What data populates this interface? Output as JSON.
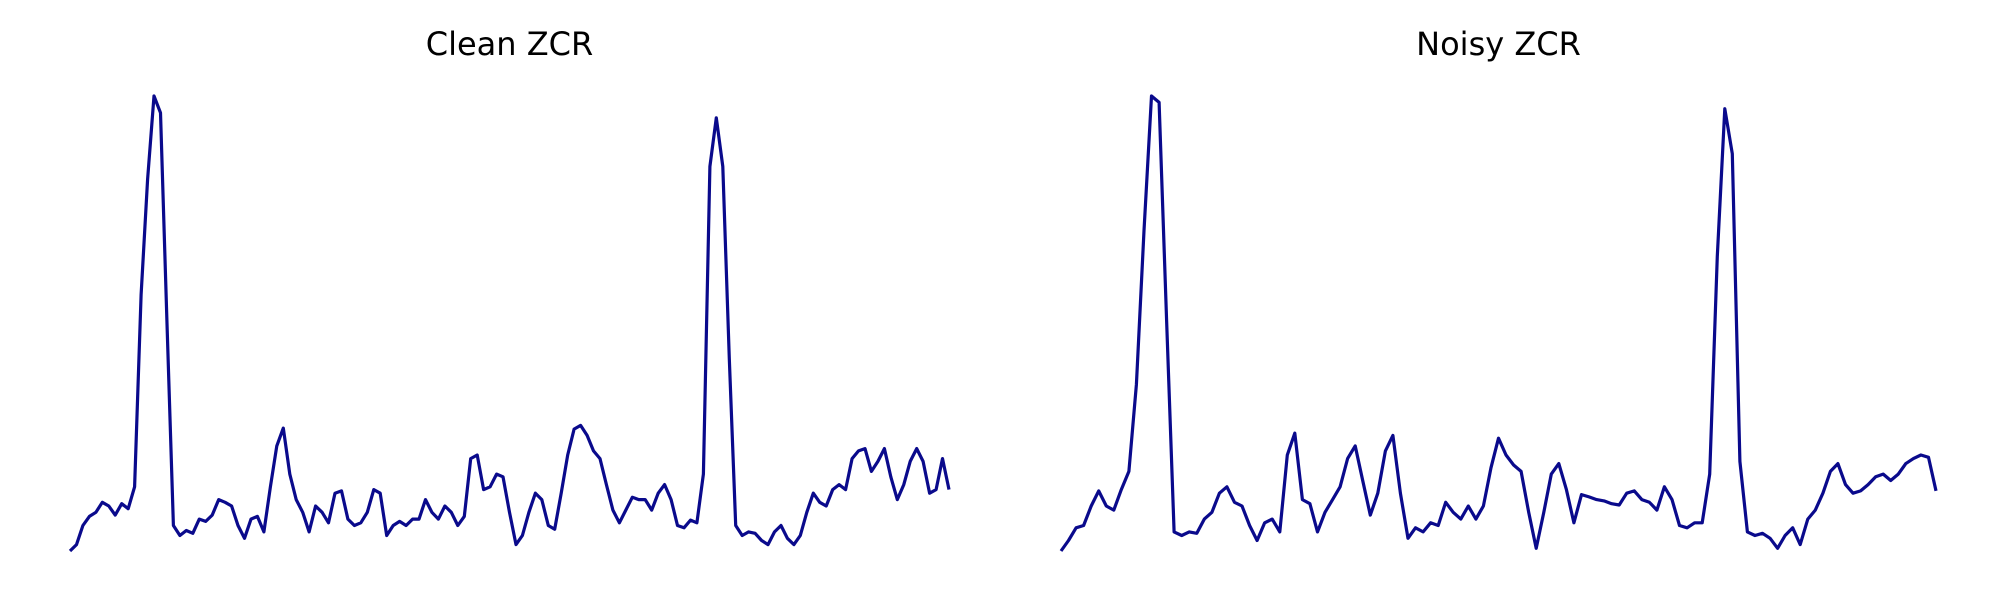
{
  "chart_data": [
    {
      "type": "line",
      "title": "Clean ZCR",
      "color": "#0a0a8c",
      "ylim": [
        0,
        100
      ],
      "values": [
        0,
        1.4,
        5.6,
        7.6,
        8.5,
        10.7,
        9.9,
        7.9,
        10.4,
        9.3,
        14.1,
        56.3,
        81.7,
        100,
        96.3,
        50.7,
        5.6,
        3.4,
        4.5,
        3.9,
        7.0,
        6.5,
        7.9,
        11.3,
        10.7,
        9.9,
        5.6,
        2.8,
        7.0,
        7.6,
        4.2,
        14.1,
        23.1,
        27.0,
        16.9,
        11.3,
        8.5,
        4.2,
        9.9,
        8.5,
        6.2,
        12.7,
        13.2,
        7.0,
        5.6,
        6.2,
        8.5,
        13.5,
        12.7,
        3.4,
        5.6,
        6.5,
        5.6,
        7.0,
        7.0,
        11.3,
        8.5,
        7.0,
        9.9,
        8.5,
        5.6,
        7.6,
        20.3,
        21.1,
        13.5,
        14.1,
        16.9,
        16.3,
        8.5,
        1.4,
        3.4,
        8.5,
        12.7,
        11.3,
        5.6,
        4.8,
        12.7,
        21.1,
        26.8,
        27.6,
        25.4,
        22.0,
        20.3,
        14.6,
        9.0,
        6.2,
        9.0,
        11.8,
        11.3,
        11.3,
        9.0,
        12.7,
        14.6,
        11.3,
        5.6,
        5.1,
        6.8,
        6.2,
        16.9,
        84.5,
        95.2,
        84.5,
        42.3,
        5.6,
        3.4,
        4.2,
        3.9,
        2.3,
        1.4,
        4.2,
        5.6,
        2.8,
        1.4,
        3.4,
        8.5,
        12.7,
        10.7,
        9.9,
        13.5,
        14.6,
        13.5,
        20.3,
        22.0,
        22.5,
        17.5,
        19.7,
        22.5,
        16.3,
        11.3,
        14.6,
        19.7,
        22.5,
        19.7,
        12.7,
        13.5,
        20.3,
        13.5
      ]
    },
    {
      "type": "line",
      "title": "Noisy ZCR",
      "color": "#0a0a8c",
      "ylim": [
        0,
        100
      ],
      "values": [
        0,
        2.3,
        5.1,
        5.6,
        9.9,
        13.2,
        9.9,
        9.0,
        13.5,
        17.5,
        36.6,
        70.4,
        100,
        98.6,
        50.7,
        4.2,
        3.4,
        4.2,
        3.9,
        7.0,
        8.5,
        12.7,
        14.1,
        10.7,
        9.9,
        5.6,
        2.3,
        6.2,
        7.0,
        4.2,
        21.1,
        25.9,
        11.3,
        10.4,
        4.2,
        8.5,
        11.3,
        14.1,
        20.3,
        23.1,
        15.5,
        7.9,
        12.7,
        22.0,
        25.4,
        12.7,
        2.8,
        5.1,
        4.2,
        6.2,
        5.6,
        10.7,
        8.5,
        7.0,
        9.9,
        7.0,
        9.9,
        18.3,
        24.8,
        21.1,
        18.9,
        17.5,
        8.5,
        0.6,
        8.5,
        16.9,
        19.2,
        13.5,
        6.2,
        12.4,
        11.9,
        11.3,
        11.0,
        10.4,
        10.1,
        12.7,
        13.2,
        11.3,
        10.7,
        9.0,
        14.1,
        11.3,
        5.6,
        5.1,
        6.2,
        6.2,
        16.9,
        64.8,
        97.2,
        87.3,
        19.7,
        4.2,
        3.4,
        3.9,
        2.8,
        0.6,
        3.4,
        5.1,
        1.4,
        7.0,
        9.0,
        12.7,
        17.5,
        19.2,
        14.6,
        12.7,
        13.2,
        14.6,
        16.3,
        16.9,
        15.5,
        16.9,
        19.2,
        20.3,
        21.1,
        20.6,
        13.2
      ]
    }
  ]
}
